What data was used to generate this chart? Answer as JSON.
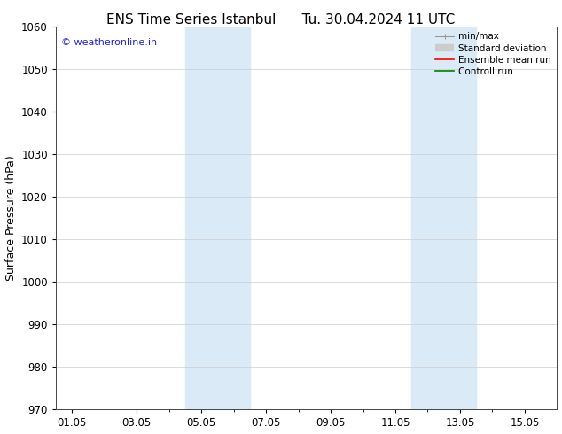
{
  "title_left": "ENS Time Series Istanbul",
  "title_right": "Tu. 30.04.2024 11 UTC",
  "ylabel": "Surface Pressure (hPa)",
  "ylim": [
    970,
    1060
  ],
  "yticks": [
    970,
    980,
    990,
    1000,
    1010,
    1020,
    1030,
    1040,
    1050,
    1060
  ],
  "xtick_labels": [
    "01.05",
    "03.05",
    "05.05",
    "07.05",
    "09.05",
    "11.05",
    "13.05",
    "15.05"
  ],
  "xtick_positions": [
    0,
    2,
    4,
    6,
    8,
    10,
    12,
    14
  ],
  "xlim": [
    -0.5,
    15.0
  ],
  "shaded_regions": [
    {
      "x_start": 3.5,
      "x_end": 5.5
    },
    {
      "x_start": 10.5,
      "x_end": 12.5
    }
  ],
  "shaded_color": "#daeaf7",
  "background_color": "#ffffff",
  "watermark": "© weatheronline.in",
  "watermark_color": "#2222cc",
  "legend_items": [
    {
      "label": "min/max",
      "color": "#999999"
    },
    {
      "label": "Standard deviation",
      "color": "#cccccc"
    },
    {
      "label": "Ensemble mean run",
      "color": "#ff0000"
    },
    {
      "label": "Controll run",
      "color": "#008000"
    }
  ],
  "title_fontsize": 11,
  "axis_fontsize": 9,
  "tick_fontsize": 8.5,
  "legend_fontsize": 7.5,
  "grid_color": "#cccccc",
  "spine_color": "#444444"
}
